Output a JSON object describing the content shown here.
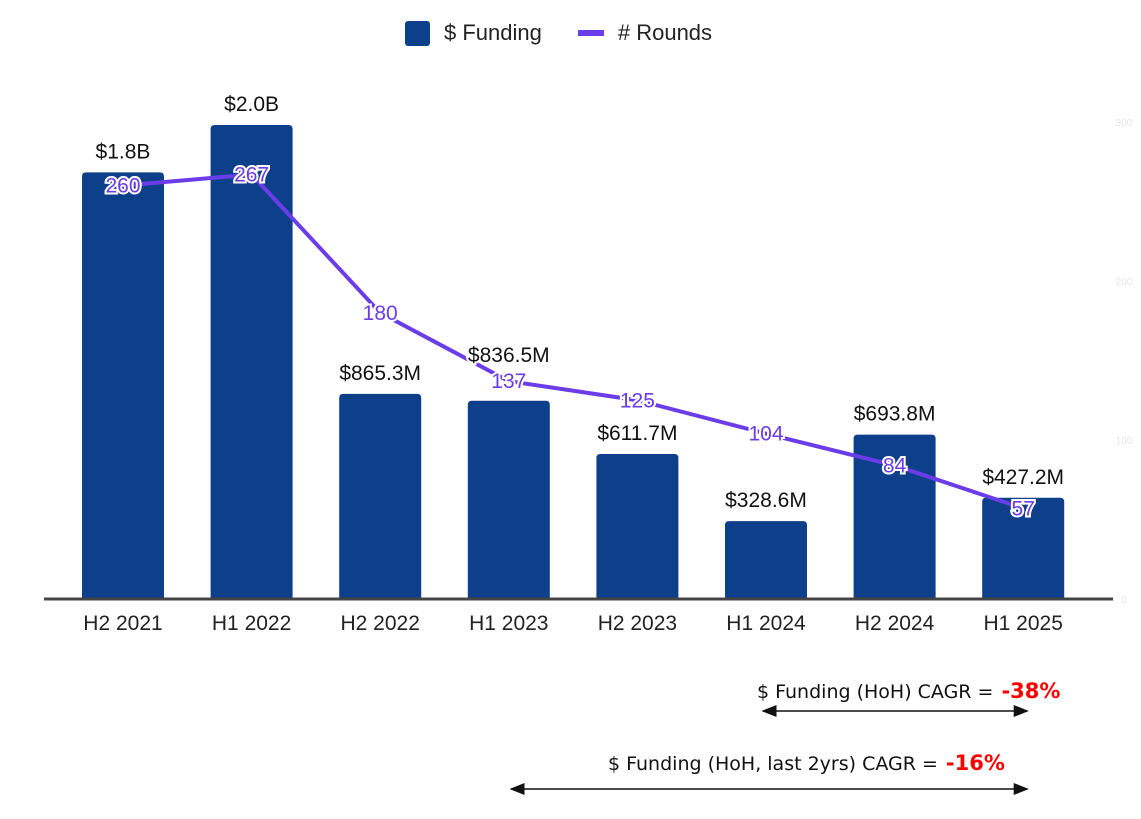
{
  "legend": {
    "items": [
      {
        "label": "$ Funding",
        "color": "#0d3f8a",
        "kind": "bar"
      },
      {
        "label": "# Rounds",
        "color": "#6a3de8",
        "kind": "line"
      }
    ]
  },
  "chart_data": {
    "type": "bar+line",
    "title": "",
    "xlabel": "",
    "ylabel": "$ Funding",
    "y2label": "# Rounds",
    "categories": [
      "H2 2021",
      "H1 2022",
      "H2 2022",
      "H1 2023",
      "H2 2023",
      "H1 2024",
      "H2 2024",
      "H1 2025"
    ],
    "ylim": [
      0,
      2000
    ],
    "y2lim": [
      0,
      300
    ],
    "y2_ticks": [
      "0",
      "100",
      "200",
      "300"
    ],
    "grid": false,
    "legend_position": "top-center",
    "series": [
      {
        "name": "$ Funding",
        "type": "bar",
        "unit": "USD millions",
        "color": "#0d3f8a",
        "values": [
          1800,
          2000,
          865.3,
          836.5,
          611.7,
          328.6,
          693.8,
          427.2
        ],
        "labels": [
          "$1.8B",
          "$2.0B",
          "$865.3M",
          "$836.5M",
          "$611.7M",
          "$328.6M",
          "$693.8M",
          "$427.2M"
        ]
      },
      {
        "name": "# Rounds",
        "type": "line",
        "axis": "right",
        "color": "#6a3de8",
        "values": [
          260,
          267,
          180,
          137,
          125,
          104,
          84,
          57
        ],
        "labels": [
          "260",
          "267",
          "180",
          "137",
          "125",
          "104",
          "84",
          "57"
        ]
      }
    ]
  },
  "annotations": [
    {
      "text": "$ Funding (HoH) CAGR =",
      "value": "-38%",
      "from": "H2 2024",
      "to": "H1 2025"
    },
    {
      "text": "$ Funding (HoH, last 2yrs) CAGR =",
      "value": "-16%",
      "from": "H1 2023",
      "to": "H1 2025"
    }
  ]
}
